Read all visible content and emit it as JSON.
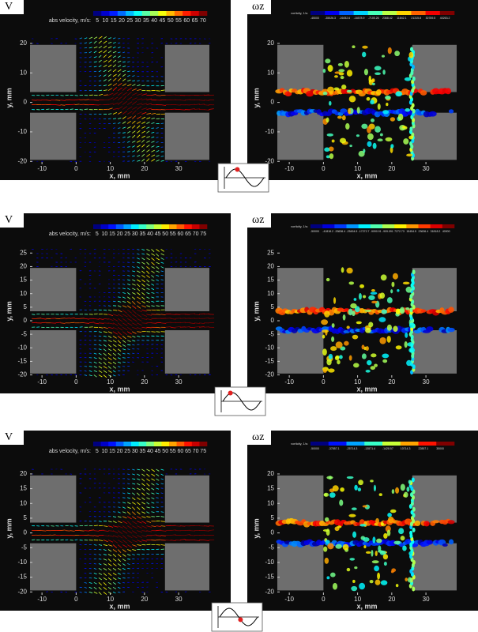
{
  "chart_data": [
    {
      "type": "vector",
      "title": "V",
      "colorbar_label": "abs velocity, m/s:",
      "colorbar_ticks": [
        5,
        10,
        15,
        20,
        25,
        30,
        35,
        40,
        45,
        50,
        55,
        60,
        65,
        70
      ],
      "xlabel": "x, mm",
      "ylabel": "y, mm",
      "xlim": [
        -13.5,
        39
      ],
      "ylim": [
        -21,
        24
      ],
      "xticks": [
        -10,
        0,
        10,
        20,
        30
      ],
      "yticks": [
        20,
        10,
        0,
        -10,
        -20
      ]
    },
    {
      "type": "contour",
      "title": "ωz",
      "colorbar_label": "vorticity, 1/s:",
      "colorbar_ticks": [
        -45000,
        -35526.3,
        -26052.6,
        -16578.9,
        -7105.26,
        2368.42,
        11842.1,
        21315.8,
        30789.5,
        40263.2
      ],
      "xlabel": "x, mm",
      "ylabel": "y, mm",
      "xlim": [
        -13.5,
        39
      ],
      "ylim": [
        -21,
        24
      ],
      "xticks": [
        -10,
        0,
        10,
        20,
        30
      ],
      "yticks": [
        20,
        10,
        0,
        -10,
        -20
      ]
    },
    {
      "type": "vector",
      "title": "V",
      "colorbar_label": "abs velocity, m/s:",
      "colorbar_ticks": [
        5,
        10,
        15,
        20,
        25,
        30,
        35,
        40,
        45,
        50,
        55,
        60,
        65,
        70,
        75
      ],
      "xlabel": "x, mm",
      "ylabel": "y, mm",
      "xlim": [
        -13.5,
        39
      ],
      "ylim": [
        -21,
        28
      ],
      "xticks": [
        -10,
        0,
        10,
        20,
        30
      ],
      "yticks": [
        25,
        20,
        15,
        10,
        5,
        0,
        -5,
        -10,
        -15,
        -20
      ]
    },
    {
      "type": "contour",
      "title": "ωz",
      "colorbar_label": "vorticity, 1/s:",
      "colorbar_ticks": [
        -50000,
        -41818.2,
        -33636.4,
        -25454.5,
        -17272.7,
        -9090.91,
        -909.091,
        7272.73,
        15454.5,
        23636.4,
        31818.2,
        40000
      ],
      "xlabel": "x, mm",
      "ylabel": "y, mm",
      "xlim": [
        -13.5,
        39
      ],
      "ylim": [
        -21,
        28
      ],
      "xticks": [
        -10,
        0,
        10,
        20,
        30
      ],
      "yticks": [
        25,
        20,
        15,
        10,
        5,
        0,
        -5,
        -10,
        -15,
        -20
      ]
    },
    {
      "type": "vector",
      "title": "V",
      "colorbar_label": "abs velocity, m/s:",
      "colorbar_ticks": [
        5,
        10,
        15,
        20,
        25,
        30,
        35,
        40,
        45,
        50,
        55,
        60,
        65,
        70,
        75
      ],
      "xlabel": "x, mm",
      "ylabel": "y, mm",
      "xlim": [
        -13.5,
        39
      ],
      "ylim": [
        -21,
        24
      ],
      "xticks": [
        -10,
        0,
        10,
        20,
        30
      ],
      "yticks": [
        20,
        15,
        10,
        5,
        0,
        -5,
        -10,
        -15,
        -20
      ]
    },
    {
      "type": "contour",
      "title": "ωz",
      "colorbar_label": "vorticity, 1/s:",
      "colorbar_ticks": [
        -50000,
        -37857.1,
        -25714.3,
        -13571.4,
        -1428.57,
        10714.3,
        22857.1,
        35000
      ],
      "xlabel": "x, mm",
      "ylabel": "y, mm",
      "xlim": [
        -13.5,
        39
      ],
      "ylim": [
        -21,
        24
      ],
      "xticks": [
        -10,
        0,
        10,
        20,
        30
      ],
      "yticks": [
        20,
        15,
        10,
        5,
        0,
        -5,
        -10,
        -15,
        -20
      ]
    }
  ]
}
